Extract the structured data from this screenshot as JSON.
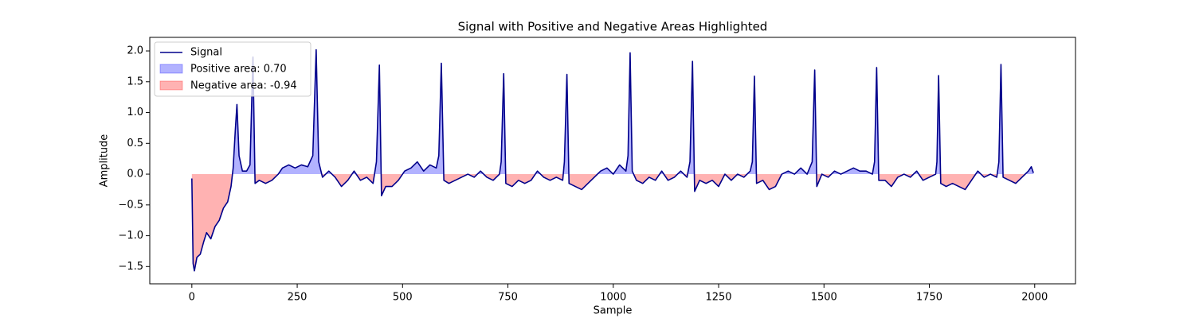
{
  "chart_data": {
    "type": "line",
    "title": "Signal with Positive and Negative Areas Highlighted",
    "xlabel": "Sample",
    "ylabel": "Amplitude",
    "x": [
      0,
      3,
      6,
      12,
      20,
      28,
      35,
      45,
      55,
      65,
      75,
      85,
      93,
      98,
      103,
      107,
      112,
      120,
      130,
      138,
      145,
      150,
      160,
      175,
      190,
      205,
      215,
      230,
      245,
      260,
      275,
      287,
      295,
      301,
      310,
      325,
      340,
      355,
      370,
      385,
      400,
      415,
      430,
      438,
      445,
      450,
      460,
      475,
      490,
      505,
      520,
      535,
      550,
      565,
      580,
      586,
      592,
      598,
      610,
      625,
      640,
      655,
      670,
      685,
      700,
      715,
      730,
      734,
      740,
      745,
      760,
      775,
      790,
      805,
      820,
      835,
      850,
      865,
      880,
      884,
      890,
      895,
      910,
      925,
      940,
      955,
      970,
      985,
      1000,
      1015,
      1030,
      1035,
      1040,
      1045,
      1055,
      1070,
      1085,
      1100,
      1115,
      1130,
      1145,
      1160,
      1175,
      1182,
      1188,
      1193,
      1205,
      1220,
      1235,
      1250,
      1265,
      1280,
      1295,
      1310,
      1325,
      1330,
      1335,
      1340,
      1355,
      1370,
      1385,
      1400,
      1415,
      1430,
      1445,
      1460,
      1472,
      1478,
      1483,
      1495,
      1510,
      1525,
      1540,
      1555,
      1570,
      1585,
      1600,
      1615,
      1620,
      1625,
      1630,
      1645,
      1660,
      1675,
      1690,
      1705,
      1720,
      1735,
      1750,
      1765,
      1768,
      1772,
      1777,
      1790,
      1805,
      1820,
      1835,
      1850,
      1865,
      1880,
      1895,
      1910,
      1915,
      1920,
      1925,
      1940,
      1955,
      1970,
      1985,
      1992,
      1997
    ],
    "series": [
      {
        "name": "Signal",
        "color": "#00008b",
        "values": [
          -0.07,
          -1.45,
          -1.57,
          -1.35,
          -1.3,
          -1.1,
          -0.95,
          -1.05,
          -0.85,
          -0.75,
          -0.55,
          -0.45,
          -0.2,
          0.1,
          0.7,
          1.13,
          0.3,
          0.05,
          0.05,
          0.15,
          1.9,
          -0.15,
          -0.1,
          -0.15,
          -0.1,
          0.0,
          0.1,
          0.15,
          0.1,
          0.15,
          0.12,
          0.3,
          2.02,
          0.2,
          -0.05,
          0.05,
          -0.05,
          -0.2,
          -0.1,
          0.05,
          -0.1,
          -0.05,
          -0.15,
          0.2,
          1.77,
          -0.35,
          -0.2,
          -0.2,
          -0.1,
          0.05,
          0.1,
          0.2,
          0.05,
          0.15,
          0.1,
          0.3,
          1.8,
          -0.1,
          -0.15,
          -0.1,
          -0.05,
          0.0,
          -0.05,
          0.05,
          -0.05,
          -0.1,
          0.0,
          0.2,
          1.63,
          -0.15,
          -0.2,
          -0.1,
          -0.15,
          -0.1,
          0.05,
          -0.05,
          -0.1,
          -0.05,
          -0.1,
          0.2,
          1.62,
          -0.15,
          -0.2,
          -0.25,
          -0.15,
          -0.05,
          0.05,
          0.1,
          0.0,
          0.15,
          0.05,
          0.3,
          1.97,
          0.05,
          -0.1,
          -0.15,
          -0.05,
          -0.1,
          0.05,
          -0.1,
          -0.05,
          0.05,
          -0.05,
          0.2,
          1.83,
          -0.28,
          -0.1,
          -0.15,
          -0.1,
          -0.2,
          0.0,
          -0.1,
          0.0,
          -0.05,
          0.05,
          0.2,
          1.59,
          -0.15,
          -0.1,
          -0.25,
          -0.2,
          0.0,
          0.05,
          0.0,
          0.1,
          0.0,
          0.2,
          1.69,
          -0.2,
          0.0,
          -0.05,
          0.05,
          0.0,
          0.05,
          0.1,
          0.05,
          0.05,
          0.0,
          0.2,
          1.73,
          -0.1,
          -0.1,
          -0.2,
          -0.05,
          0.0,
          -0.05,
          0.05,
          -0.1,
          -0.05,
          0.0,
          0.2,
          1.6,
          -0.15,
          -0.2,
          -0.15,
          -0.2,
          -0.25,
          -0.1,
          0.05,
          -0.05,
          0.0,
          -0.05,
          0.2,
          1.78,
          -0.05,
          -0.1,
          -0.15,
          -0.05,
          0.05,
          0.12,
          0.02
        ]
      }
    ],
    "fills": [
      {
        "name": "Positive area: 0.70",
        "color": "#0000ff",
        "side": "positive"
      },
      {
        "name": "Negative area: -0.94",
        "color": "#ff0000",
        "side": "negative"
      }
    ],
    "xlim": [
      -99.85,
      2096.85
    ],
    "ylim": [
      -1.78,
      2.22
    ],
    "xticks": [
      0,
      250,
      500,
      750,
      1000,
      1250,
      1500,
      1750,
      2000
    ],
    "yticks": [
      {
        "value": -1.5,
        "label": "−1.5"
      },
      {
        "value": -1.0,
        "label": "−1.0"
      },
      {
        "value": -0.5,
        "label": "−0.5"
      },
      {
        "value": 0.0,
        "label": "0.0"
      },
      0.5,
      {
        "value": 1.0,
        "label": "1.0"
      },
      1.5,
      {
        "value": 2.0,
        "label": "2.0"
      }
    ],
    "legend": "upper left"
  }
}
